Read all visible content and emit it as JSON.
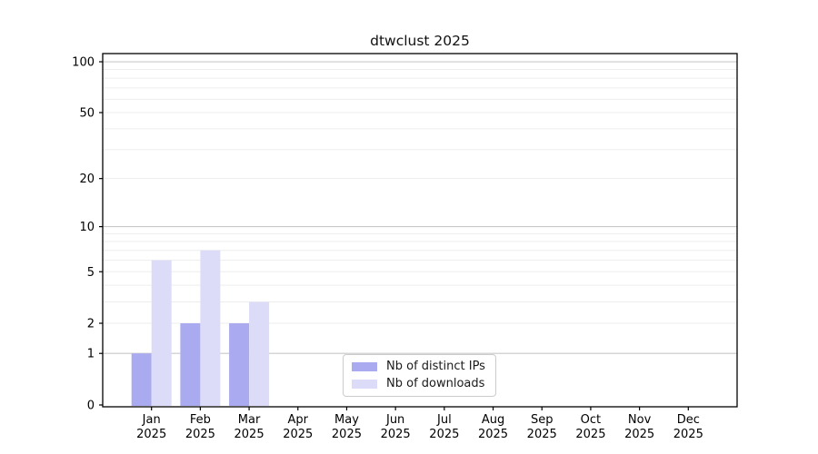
{
  "chart_data": {
    "type": "bar",
    "title": "dtwclust 2025",
    "categories": [
      "Jan",
      "Feb",
      "Mar",
      "Apr",
      "May",
      "Jun",
      "Jul",
      "Aug",
      "Sep",
      "Oct",
      "Nov",
      "Dec"
    ],
    "x_year_label": "2025",
    "series": [
      {
        "name": "Nb of distinct IPs",
        "color": "#aaaaf0",
        "values": [
          1,
          2,
          2,
          0,
          0,
          0,
          0,
          0,
          0,
          0,
          0,
          0
        ]
      },
      {
        "name": "Nb of downloads",
        "color": "#dcdcf8",
        "values": [
          6,
          7,
          3,
          0,
          0,
          0,
          0,
          0,
          0,
          0,
          0,
          0
        ]
      }
    ],
    "yscale": "log1p",
    "ylabel": "",
    "xlabel": "",
    "yticks": [
      0,
      1,
      2,
      5,
      10,
      20,
      50,
      100
    ],
    "ylim": [
      0,
      112
    ],
    "grid": {
      "minor_values": [
        2,
        3,
        4,
        5,
        6,
        7,
        8,
        9,
        20,
        30,
        40,
        50,
        60,
        70,
        80,
        90
      ],
      "major_values": [
        1,
        10,
        100
      ],
      "minor_color": "#ededed",
      "major_color": "#c9c9c9"
    },
    "legend_position": "lower center"
  },
  "colors": {
    "background": "#ffffff",
    "spine": "#000000",
    "tick_text": "#000000"
  }
}
